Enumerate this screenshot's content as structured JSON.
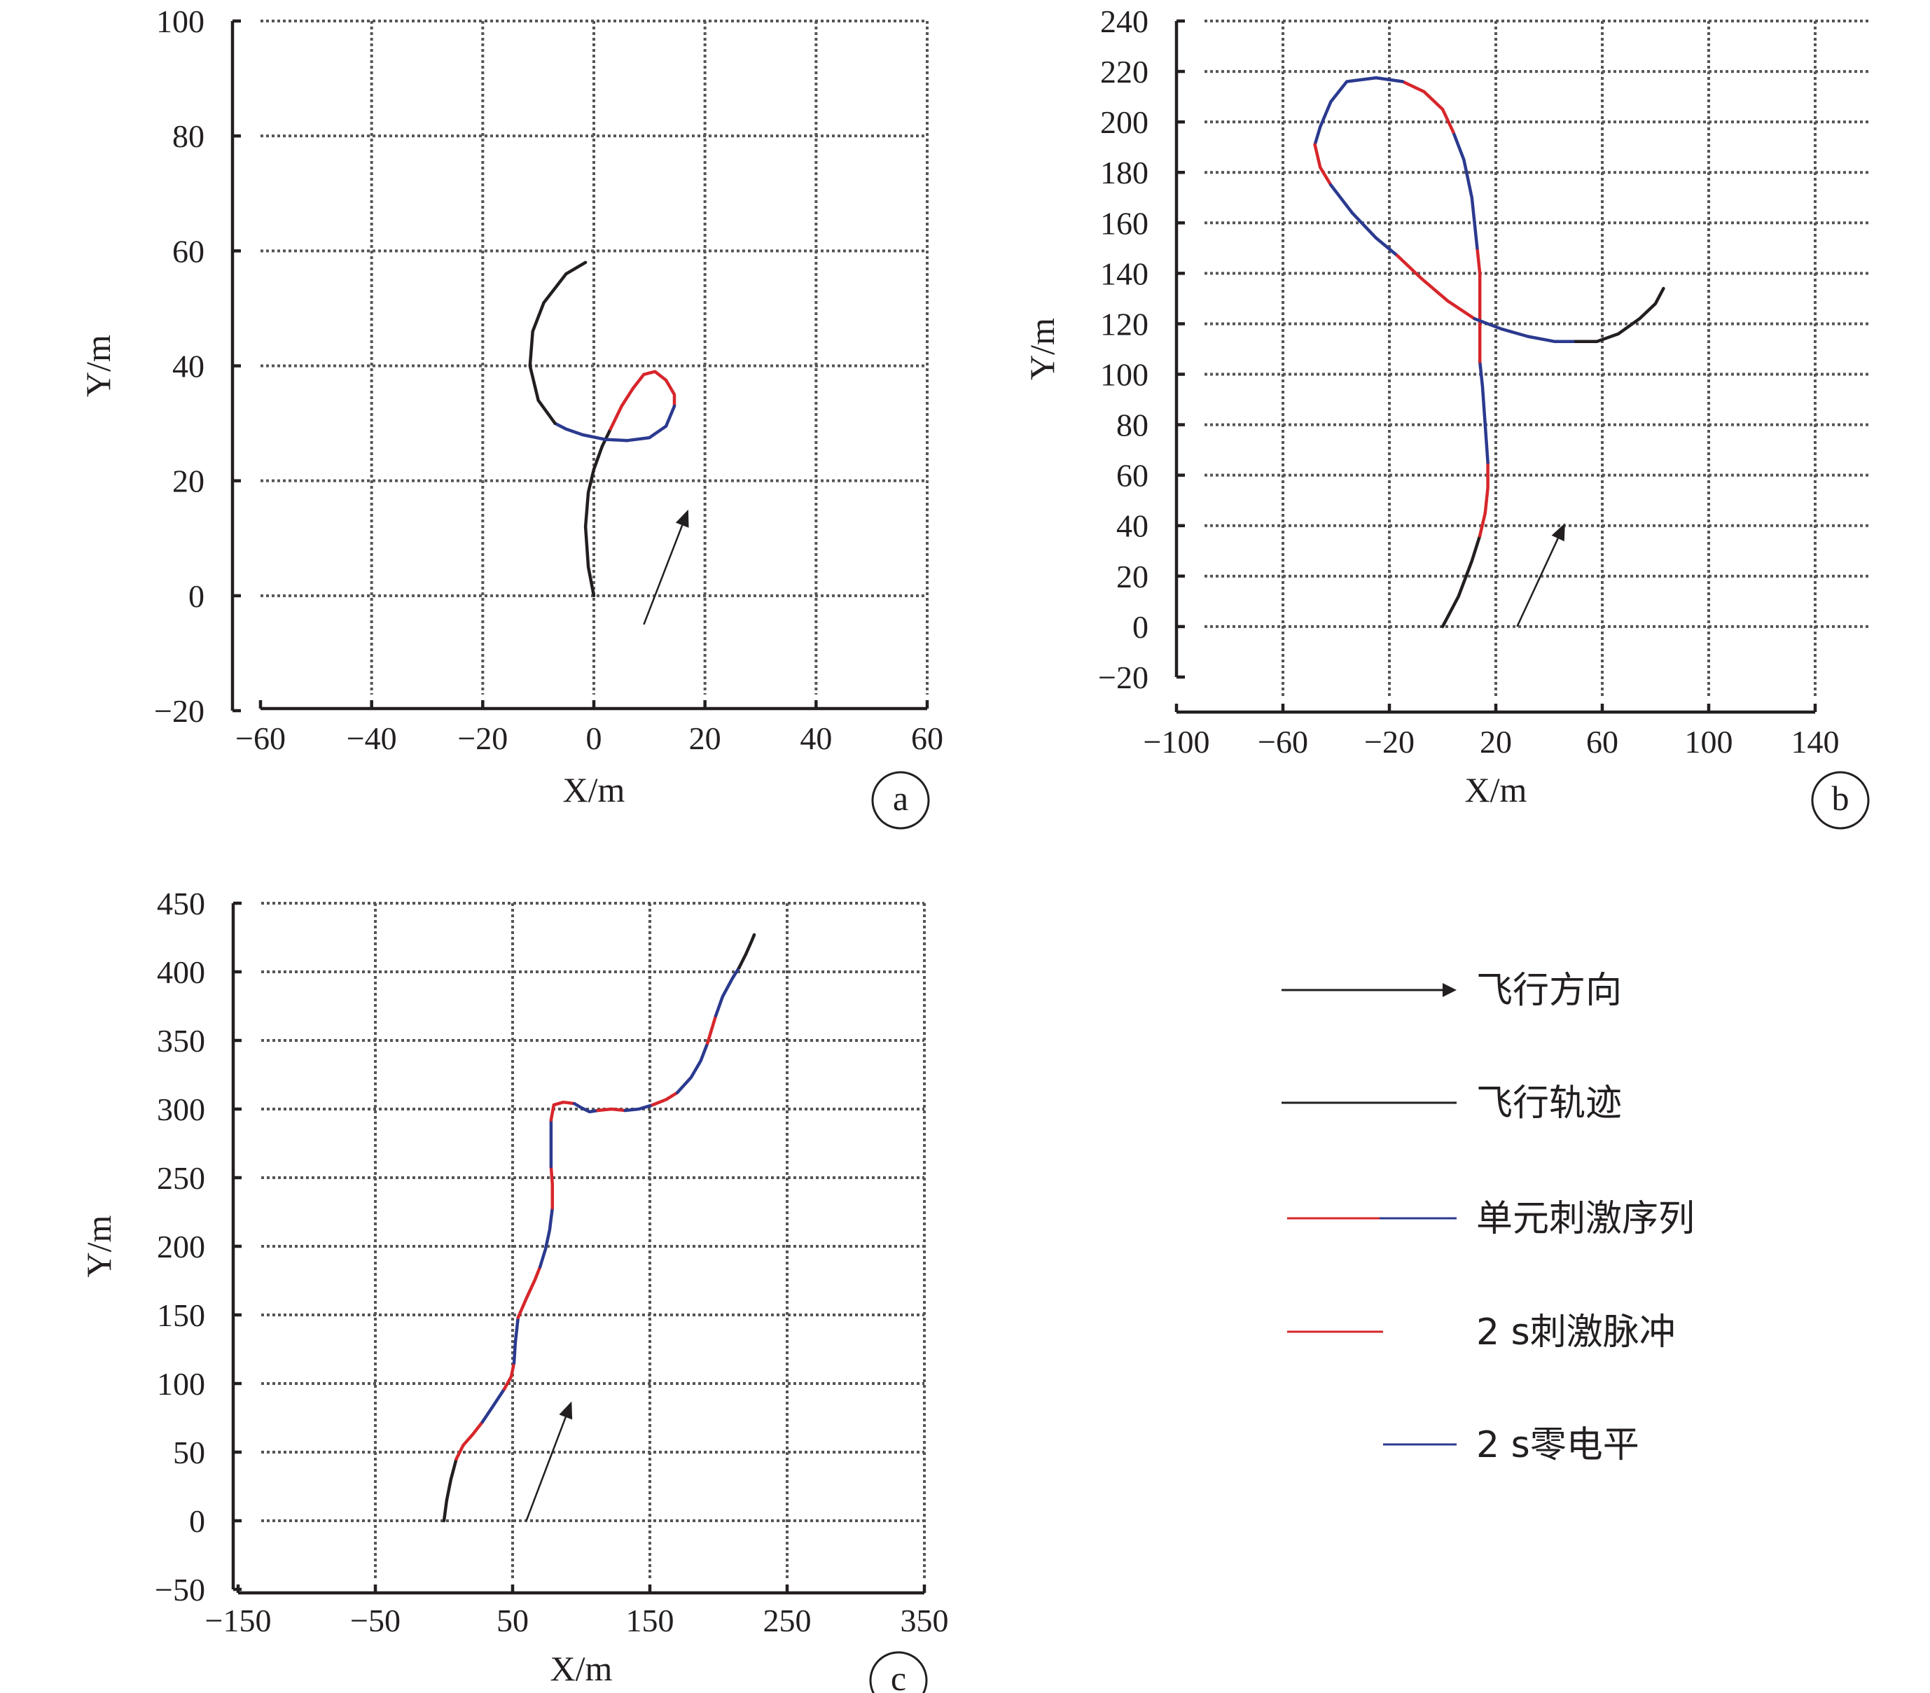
{
  "colors": {
    "trajectory": "#231f20",
    "stimulus_pulse": "#d7262b",
    "zero_level": "#2b3a8f",
    "grid": "#555555"
  },
  "legend": {
    "items": [
      {
        "key": "direction",
        "label": "飞行方向",
        "symbol": "arrow"
      },
      {
        "key": "trajectory",
        "label": "飞行轨迹",
        "symbol": "black-line"
      },
      {
        "key": "sequence",
        "label": "单元刺激序列",
        "symbol": "red-blue-line"
      },
      {
        "key": "pulse",
        "label": "2 s刺激脉冲",
        "symbol": "red-line"
      },
      {
        "key": "zero",
        "label": "2 s零电平",
        "symbol": "blue-line"
      }
    ]
  },
  "chart_data": [
    {
      "panel": "a",
      "type": "line",
      "xlabel": "X/m",
      "ylabel": "Y/m",
      "xlim": [
        -60,
        60
      ],
      "ylim": [
        -20,
        100
      ],
      "xticks": [
        -60,
        -40,
        -20,
        0,
        20,
        40,
        60
      ],
      "xtick_labels": [
        "−60",
        "−40",
        "−20",
        "0",
        "20",
        "40",
        "60"
      ],
      "yticks": [
        -20,
        0,
        20,
        40,
        60,
        80,
        100
      ],
      "ytick_labels": [
        "−20",
        "0",
        "20",
        "40",
        "60",
        "80",
        "100"
      ],
      "grid": true,
      "direction_arrow": {
        "from": [
          9,
          -5
        ],
        "to": [
          17,
          15
        ]
      },
      "segments": [
        {
          "series": "飞行轨迹",
          "color": "trajectory",
          "points": [
            [
              0,
              0
            ],
            [
              -1,
              5
            ],
            [
              -1.5,
              12
            ],
            [
              -1,
              18
            ],
            [
              0,
              22
            ],
            [
              1.5,
              26
            ],
            [
              3,
              29
            ]
          ]
        },
        {
          "series": "2 s刺激脉冲",
          "color": "stimulus_pulse",
          "points": [
            [
              3,
              29
            ],
            [
              5,
              33
            ],
            [
              7,
              36
            ],
            [
              9,
              38.5
            ],
            [
              11,
              39
            ],
            [
              13,
              37.5
            ],
            [
              14.5,
              35
            ],
            [
              14.5,
              33
            ]
          ]
        },
        {
          "series": "2 s零电平",
          "color": "zero_level",
          "points": [
            [
              14.5,
              33
            ],
            [
              13,
              29.5
            ],
            [
              10,
              27.5
            ],
            [
              6,
              27
            ],
            [
              2,
              27.2
            ],
            [
              -2,
              28
            ],
            [
              -5,
              29
            ],
            [
              -7,
              30
            ]
          ]
        },
        {
          "series": "飞行轨迹",
          "color": "trajectory",
          "points": [
            [
              -7,
              30
            ],
            [
              -10,
              34
            ],
            [
              -11.5,
              40
            ],
            [
              -11,
              46
            ],
            [
              -9,
              51
            ],
            [
              -5,
              56
            ],
            [
              -1.5,
              58
            ]
          ]
        }
      ]
    },
    {
      "panel": "b",
      "type": "line",
      "xlabel": "X/m",
      "ylabel": "Y/m",
      "xlim": [
        -100,
        160
      ],
      "ylim": [
        -20,
        240
      ],
      "xticks": [
        -100,
        -60,
        -20,
        20,
        60,
        100,
        140
      ],
      "xtick_labels": [
        "−100",
        "−60",
        "−20",
        "20",
        "60",
        "100",
        "140"
      ],
      "yticks": [
        -20,
        0,
        20,
        40,
        60,
        80,
        100,
        120,
        140,
        160,
        180,
        200,
        220,
        240
      ],
      "ytick_labels": [
        "−20",
        "0",
        "20",
        "40",
        "60",
        "80",
        "100",
        "120",
        "140",
        "160",
        "180",
        "200",
        "220",
        "240"
      ],
      "grid": true,
      "direction_arrow": {
        "from": [
          28,
          0
        ],
        "to": [
          46,
          41
        ]
      },
      "segments": [
        {
          "series": "飞行轨迹",
          "color": "trajectory",
          "points": [
            [
              0,
              0
            ],
            [
              6,
              12
            ],
            [
              11,
              26
            ],
            [
              14,
              36
            ]
          ]
        },
        {
          "series": "2 s刺激脉冲",
          "color": "stimulus_pulse",
          "points": [
            [
              14,
              36
            ],
            [
              16,
              45
            ],
            [
              17,
              55
            ],
            [
              17,
              65
            ]
          ]
        },
        {
          "series": "2 s零电平",
          "color": "zero_level",
          "points": [
            [
              17,
              65
            ],
            [
              16,
              80
            ],
            [
              15,
              95
            ],
            [
              14,
              105
            ]
          ]
        },
        {
          "series": "2 s刺激脉冲",
          "color": "stimulus_pulse",
          "points": [
            [
              14,
              105
            ],
            [
              14,
              125
            ],
            [
              14,
              140
            ],
            [
              13,
              150
            ]
          ]
        },
        {
          "series": "2 s零电平",
          "color": "zero_level",
          "points": [
            [
              13,
              150
            ],
            [
              11,
              170
            ],
            [
              8,
              185
            ],
            [
              4,
              196
            ]
          ]
        },
        {
          "series": "2 s刺激脉冲",
          "color": "stimulus_pulse",
          "points": [
            [
              4,
              196
            ],
            [
              0,
              205
            ],
            [
              -7,
              212
            ],
            [
              -15,
              216
            ]
          ]
        },
        {
          "series": "2 s零电平",
          "color": "zero_level",
          "points": [
            [
              -15,
              216
            ],
            [
              -25,
              217.5
            ],
            [
              -36,
              216
            ],
            [
              -42,
              208
            ],
            [
              -46,
              198
            ],
            [
              -48,
              191
            ]
          ]
        },
        {
          "series": "2 s刺激脉冲",
          "color": "stimulus_pulse",
          "points": [
            [
              -48,
              191
            ],
            [
              -46,
              182
            ],
            [
              -42,
              175
            ]
          ]
        },
        {
          "series": "2 s零电平",
          "color": "zero_level",
          "points": [
            [
              -42,
              175
            ],
            [
              -34,
              164
            ],
            [
              -25,
              154
            ],
            [
              -17,
              147
            ]
          ]
        },
        {
          "series": "2 s刺激脉冲",
          "color": "stimulus_pulse",
          "points": [
            [
              -17,
              147
            ],
            [
              -8,
              138
            ],
            [
              2,
              129
            ],
            [
              12,
              122
            ]
          ]
        },
        {
          "series": "2 s零电平",
          "color": "zero_level",
          "points": [
            [
              12,
              122
            ],
            [
              22,
              118
            ],
            [
              32,
              115
            ],
            [
              42,
              113
            ],
            [
              50,
              113
            ]
          ]
        },
        {
          "series": "飞行轨迹",
          "color": "trajectory",
          "points": [
            [
              50,
              113
            ],
            [
              58,
              113
            ],
            [
              66,
              116
            ],
            [
              74,
              122
            ],
            [
              80,
              128
            ],
            [
              83,
              134
            ]
          ]
        }
      ]
    },
    {
      "panel": "c",
      "type": "line",
      "xlabel": "X/m",
      "ylabel": "Y/m",
      "xlim": [
        -150,
        350
      ],
      "ylim": [
        -50,
        450
      ],
      "xticks": [
        -150,
        -50,
        50,
        150,
        250,
        350
      ],
      "xtick_labels": [
        "−150",
        "−50",
        "50",
        "150",
        "250",
        "350"
      ],
      "yticks": [
        -50,
        0,
        50,
        100,
        150,
        200,
        250,
        300,
        350,
        400,
        450
      ],
      "ytick_labels": [
        "−50",
        "0",
        "50",
        "100",
        "150",
        "200",
        "250",
        "300",
        "350",
        "400",
        "450"
      ],
      "grid": true,
      "direction_arrow": {
        "from": [
          60,
          0
        ],
        "to": [
          93,
          87
        ]
      },
      "segments": [
        {
          "series": "飞行轨迹",
          "color": "trajectory",
          "points": [
            [
              0,
              0
            ],
            [
              2,
              15
            ],
            [
              5,
              30
            ],
            [
              9,
              45
            ]
          ]
        },
        {
          "series": "2 s刺激脉冲",
          "color": "stimulus_pulse",
          "points": [
            [
              9,
              45
            ],
            [
              14,
              55
            ],
            [
              21,
              63
            ],
            [
              28,
              72
            ]
          ]
        },
        {
          "series": "2 s零电平",
          "color": "zero_level",
          "points": [
            [
              28,
              72
            ],
            [
              36,
              84
            ],
            [
              44,
              96
            ]
          ]
        },
        {
          "series": "2 s刺激脉冲",
          "color": "stimulus_pulse",
          "points": [
            [
              44,
              96
            ],
            [
              49,
              105
            ],
            [
              51,
              115
            ]
          ]
        },
        {
          "series": "2 s零电平",
          "color": "zero_level",
          "points": [
            [
              51,
              115
            ],
            [
              52,
              130
            ],
            [
              54,
              148
            ]
          ]
        },
        {
          "series": "2 s刺激脉冲",
          "color": "stimulus_pulse",
          "points": [
            [
              54,
              148
            ],
            [
              60,
              162
            ],
            [
              66,
              175
            ],
            [
              70,
              185
            ]
          ]
        },
        {
          "series": "2 s零电平",
          "color": "zero_level",
          "points": [
            [
              70,
              185
            ],
            [
              74,
              198
            ],
            [
              77,
              212
            ],
            [
              79,
              228
            ]
          ]
        },
        {
          "series": "2 s刺激脉冲",
          "color": "stimulus_pulse",
          "points": [
            [
              79,
              228
            ],
            [
              79,
              245
            ],
            [
              78,
              258
            ]
          ]
        },
        {
          "series": "2 s零电平",
          "color": "zero_level",
          "points": [
            [
              78,
              258
            ],
            [
              78,
              275
            ],
            [
              78,
              292
            ]
          ]
        },
        {
          "series": "2 s刺激脉冲",
          "color": "stimulus_pulse",
          "points": [
            [
              78,
              292
            ],
            [
              80,
              303
            ],
            [
              87,
              305
            ],
            [
              95,
              304
            ]
          ]
        },
        {
          "series": "2 s零电平",
          "color": "zero_level",
          "points": [
            [
              95,
              304
            ],
            [
              100,
              301
            ],
            [
              106,
              298
            ],
            [
              112,
              299
            ]
          ]
        },
        {
          "series": "2 s刺激脉冲",
          "color": "stimulus_pulse",
          "points": [
            [
              112,
              299
            ],
            [
              122,
              300
            ],
            [
              132,
              299
            ]
          ]
        },
        {
          "series": "2 s零电平",
          "color": "zero_level",
          "points": [
            [
              132,
              299
            ],
            [
              142,
              300
            ],
            [
              152,
              303
            ]
          ]
        },
        {
          "series": "2 s刺激脉冲",
          "color": "stimulus_pulse",
          "points": [
            [
              152,
              303
            ],
            [
              162,
              307
            ],
            [
              170,
              312
            ]
          ]
        },
        {
          "series": "2 s零电平",
          "color": "zero_level",
          "points": [
            [
              170,
              312
            ],
            [
              180,
              323
            ],
            [
              187,
              335
            ],
            [
              192,
              348
            ]
          ]
        },
        {
          "series": "2 s刺激脉冲",
          "color": "stimulus_pulse",
          "points": [
            [
              192,
              348
            ],
            [
              195,
              358
            ],
            [
              198,
              368
            ]
          ]
        },
        {
          "series": "2 s零电平",
          "color": "zero_level",
          "points": [
            [
              198,
              368
            ],
            [
              203,
              382
            ],
            [
              210,
              395
            ],
            [
              215,
              403
            ]
          ]
        },
        {
          "series": "飞行轨迹",
          "color": "trajectory",
          "points": [
            [
              215,
              403
            ],
            [
              220,
              413
            ],
            [
              224,
              422
            ],
            [
              226,
              427
            ]
          ]
        }
      ]
    }
  ]
}
